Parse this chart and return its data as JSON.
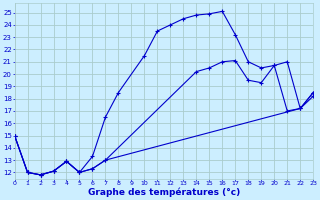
{
  "bg_color": "#cceeff",
  "grid_color": "#aacccc",
  "line_color": "#0000cc",
  "xlabel": "Graphe des températures (°c)",
  "xlim": [
    0,
    23
  ],
  "ylim": [
    11.5,
    25.8
  ],
  "ytick_vals": [
    12,
    13,
    14,
    15,
    16,
    17,
    18,
    19,
    20,
    21,
    22,
    23,
    24,
    25
  ],
  "xtick_vals": [
    0,
    1,
    2,
    3,
    4,
    5,
    6,
    7,
    8,
    9,
    10,
    11,
    12,
    13,
    14,
    15,
    16,
    17,
    18,
    19,
    20,
    21,
    22,
    23
  ],
  "curve1_x": [
    0,
    1,
    2,
    3,
    4,
    5,
    6,
    7,
    8,
    10,
    11,
    12,
    13,
    14,
    15,
    16,
    17,
    18,
    19,
    20,
    21,
    22,
    23
  ],
  "curve1_y": [
    15.0,
    12.0,
    11.8,
    12.1,
    12.9,
    12.0,
    13.3,
    16.5,
    18.5,
    21.5,
    23.5,
    24.0,
    24.5,
    24.8,
    24.9,
    25.1,
    23.2,
    21.0,
    20.5,
    20.7,
    21.0,
    17.2,
    18.5
  ],
  "curve2_x": [
    0,
    1,
    2,
    3,
    4,
    5,
    6,
    7,
    14,
    15,
    16,
    17,
    18,
    19,
    20,
    21,
    22,
    23
  ],
  "curve2_y": [
    15.0,
    12.0,
    11.8,
    12.1,
    12.9,
    12.0,
    12.3,
    13.0,
    20.2,
    20.5,
    21.0,
    21.1,
    19.5,
    19.3,
    20.7,
    17.0,
    17.2,
    18.5
  ],
  "curve3_x": [
    0,
    1,
    2,
    3,
    4,
    5,
    6,
    7,
    22,
    23
  ],
  "curve3_y": [
    15.0,
    12.0,
    11.8,
    12.1,
    12.9,
    12.0,
    12.3,
    13.0,
    17.2,
    18.2
  ]
}
